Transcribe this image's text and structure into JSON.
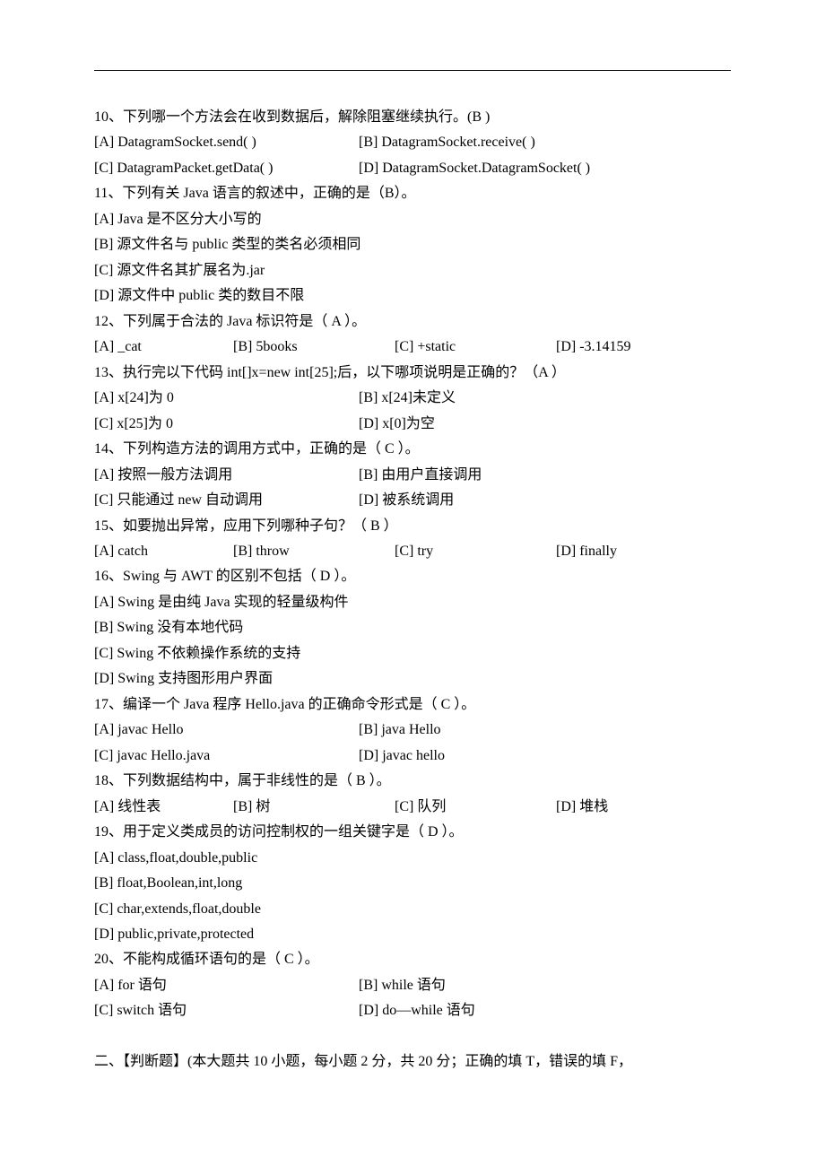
{
  "q10": {
    "text": "10、下列哪一个方法会在收到数据后，解除阻塞继续执行。(B )",
    "a": "[A] DatagramSocket.send( )",
    "b": "[B] DatagramSocket.receive( )",
    "c": "[C] DatagramPacket.getData( )",
    "d": "[D] DatagramSocket.DatagramSocket( )"
  },
  "q11": {
    "text": "11、下列有关 Java 语言的叙述中，正确的是（B）。",
    "a": "[A] Java 是不区分大小写的",
    "b": "[B] 源文件名与 public 类型的类名必须相同",
    "c": "[C] 源文件名其扩展名为.jar",
    "d": "[D] 源文件中 public 类的数目不限"
  },
  "q12": {
    "text": "12、下列属于合法的 Java 标识符是（ A ）。",
    "a": "[A] _cat",
    "b": "[B] 5books",
    "c": "[C] +static",
    "d": "[D] -3.14159"
  },
  "q13": {
    "text": "13、执行完以下代码 int[]x=new int[25];后，以下哪项说明是正确的？（A ）",
    "a": "[A] x[24]为 0",
    "b": "[B] x[24]未定义",
    "c": "[C] x[25]为 0",
    "d": "[D] x[0]为空"
  },
  "q14": {
    "text": "14、下列构造方法的调用方式中，正确的是（ C ）。",
    "a": "[A] 按照一般方法调用",
    "b": "[B] 由用户直接调用",
    "c": "[C] 只能通过 new 自动调用",
    "d": "[D] 被系统调用"
  },
  "q15": {
    "text": "15、如要抛出异常，应用下列哪种子句？（ B ）",
    "a": "[A] catch",
    "b": "[B] throw",
    "c": "[C] try",
    "d": "[D] finally"
  },
  "q16": {
    "text": "16、Swing 与 AWT 的区别不包括（ D ）。",
    "a": "[A] Swing 是由纯 Java 实现的轻量级构件",
    "b": "[B] Swing 没有本地代码",
    "c": "[C] Swing 不依赖操作系统的支持",
    "d": "[D] Swing 支持图形用户界面"
  },
  "q17": {
    "text": "17、编译一个 Java 程序 Hello.java 的正确命令形式是（ C ）。",
    "a": "[A] javac Hello",
    "b": "[B] java Hello",
    "c": "[C] javac Hello.java",
    "d": "[D] javac hello"
  },
  "q18": {
    "text": "18、下列数据结构中，属于非线性的是（ B ）。",
    "a": "[A] 线性表",
    "b": "[B] 树",
    "c": "[C] 队列",
    "d": "[D] 堆栈"
  },
  "q19": {
    "text": "19、用于定义类成员的访问控制权的一组关键字是（ D ）。",
    "a": "[A] class,float,double,public",
    "b": "[B] float,Boolean,int,long",
    "c": "[C] char,extends,float,double",
    "d": "[D] public,private,protected"
  },
  "q20": {
    "text": "20、不能构成循环语句的是（ C ）。",
    "a": "[A] for 语句",
    "b": "[B] while 语句",
    "c": "[C] switch 语句",
    "d": "[D] do—while 语句"
  },
  "section2": "二、【判断题】(本大题共 10 小题，每小题 2 分，共 20 分；正确的填 T，错误的填 F，"
}
